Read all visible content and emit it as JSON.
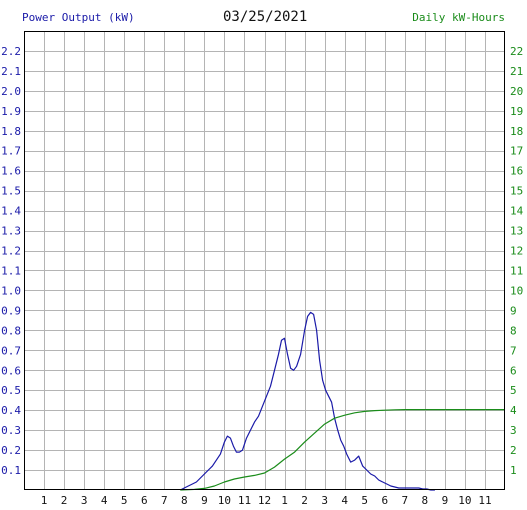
{
  "chart_data": {
    "type": "line",
    "title": "03/25/2021",
    "left_axis_label": "Power Output (kW)",
    "right_axis_label": "Daily kW-Hours",
    "x_tick_labels": [
      "1",
      "2",
      "3",
      "4",
      "5",
      "6",
      "7",
      "8",
      "9",
      "10",
      "11",
      "12",
      "1",
      "2",
      "3",
      "4",
      "5",
      "6",
      "7",
      "8",
      "9",
      "10",
      "11"
    ],
    "x_unit": "hour of day",
    "xlim": [
      0,
      24
    ],
    "y_left_lim": [
      0,
      2.3
    ],
    "y_left_ticks": [
      "0.1",
      "0.2",
      "0.3",
      "0.4",
      "0.5",
      "0.6",
      "0.7",
      "0.8",
      "0.9",
      "1.0",
      "1.1",
      "1.2",
      "1.3",
      "1.4",
      "1.5",
      "1.6",
      "1.7",
      "1.8",
      "1.9",
      "2.0",
      "2.1",
      "2.2"
    ],
    "y_right_lim": [
      0,
      23
    ],
    "y_right_ticks": [
      "1",
      "2",
      "3",
      "4",
      "5",
      "6",
      "7",
      "8",
      "9",
      "10",
      "11",
      "12",
      "13",
      "14",
      "15",
      "16",
      "17",
      "18",
      "19",
      "20",
      "21",
      "22"
    ],
    "grid": true,
    "colors": {
      "power": "#1a1aa8",
      "energy": "#1a8c1a",
      "grid": "#b4b4b4",
      "frame": "#000000",
      "title": "#111111"
    },
    "series": [
      {
        "axis": "left",
        "color": "#1a1aa8",
        "x": [
          7.8,
          8.0,
          8.2,
          8.4,
          8.6,
          8.8,
          9.0,
          9.2,
          9.4,
          9.6,
          9.8,
          10.0,
          10.15,
          10.3,
          10.45,
          10.6,
          10.75,
          10.9,
          11.1,
          11.3,
          11.5,
          11.7,
          11.9,
          12.1,
          12.3,
          12.5,
          12.7,
          12.85,
          13.0,
          13.15,
          13.3,
          13.45,
          13.6,
          13.8,
          14.0,
          14.15,
          14.3,
          14.45,
          14.6,
          14.75,
          14.9,
          15.05,
          15.2,
          15.35,
          15.5,
          15.65,
          15.8,
          15.95,
          16.1,
          16.3,
          16.5,
          16.7,
          16.9,
          17.1,
          17.3,
          17.5,
          17.7,
          17.9,
          18.1,
          18.3,
          18.5,
          18.7,
          18.9,
          19.1,
          19.3,
          19.5,
          19.7,
          19.9,
          20.1,
          20.3,
          20.5
        ],
        "y": [
          0.0,
          0.01,
          0.02,
          0.03,
          0.04,
          0.06,
          0.08,
          0.1,
          0.12,
          0.15,
          0.18,
          0.24,
          0.27,
          0.26,
          0.22,
          0.19,
          0.19,
          0.2,
          0.26,
          0.3,
          0.34,
          0.37,
          0.42,
          0.47,
          0.52,
          0.6,
          0.68,
          0.75,
          0.76,
          0.68,
          0.61,
          0.6,
          0.62,
          0.68,
          0.8,
          0.87,
          0.89,
          0.88,
          0.8,
          0.65,
          0.55,
          0.5,
          0.47,
          0.44,
          0.36,
          0.3,
          0.25,
          0.22,
          0.18,
          0.14,
          0.15,
          0.17,
          0.12,
          0.1,
          0.08,
          0.07,
          0.05,
          0.04,
          0.03,
          0.02,
          0.015,
          0.01,
          0.01,
          0.01,
          0.01,
          0.01,
          0.01,
          0.005,
          0.005,
          0.0,
          0.0
        ]
      },
      {
        "axis": "right",
        "color": "#1a8c1a",
        "x": [
          7.8,
          8.5,
          9.0,
          9.5,
          10.0,
          10.5,
          11.0,
          11.5,
          12.0,
          12.5,
          13.0,
          13.5,
          14.0,
          14.5,
          15.0,
          15.5,
          16.0,
          16.5,
          17.0,
          17.5,
          18.0,
          18.5,
          19.0,
          20.0,
          21.0,
          22.0,
          23.0,
          24.0
        ],
        "y": [
          0.0,
          0.03,
          0.08,
          0.2,
          0.4,
          0.55,
          0.65,
          0.73,
          0.85,
          1.15,
          1.55,
          1.9,
          2.4,
          2.85,
          3.3,
          3.6,
          3.75,
          3.87,
          3.94,
          3.98,
          4.0,
          4.02,
          4.03,
          4.03,
          4.03,
          4.03,
          4.03,
          4.03
        ]
      }
    ]
  }
}
